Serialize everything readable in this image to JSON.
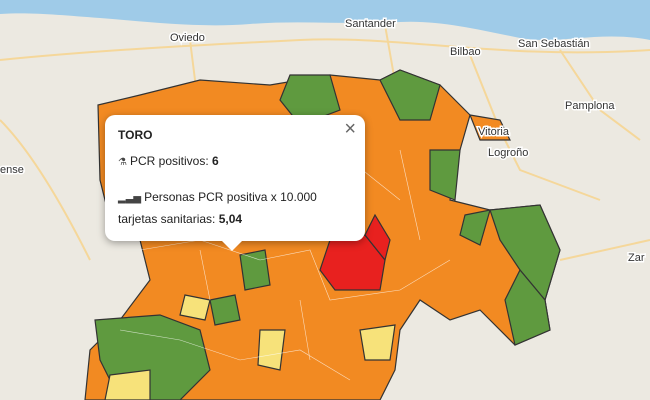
{
  "map": {
    "cities": [
      {
        "label": "Oviedo"
      },
      {
        "label": "Santander"
      },
      {
        "label": "Bilbao"
      },
      {
        "label": "San Sebastián"
      },
      {
        "label": "Vitoria"
      },
      {
        "label": "Pamplona"
      },
      {
        "label": "Logroño"
      },
      {
        "label": "ense"
      },
      {
        "label": "Zar"
      }
    ]
  },
  "popup": {
    "title": "TORO",
    "items": [
      {
        "label": "PCR positivos:",
        "value": "6"
      },
      {
        "label": "Personas PCR positiva x 10.000 tarjetas sanitarias:",
        "value": "5,04"
      }
    ]
  }
}
